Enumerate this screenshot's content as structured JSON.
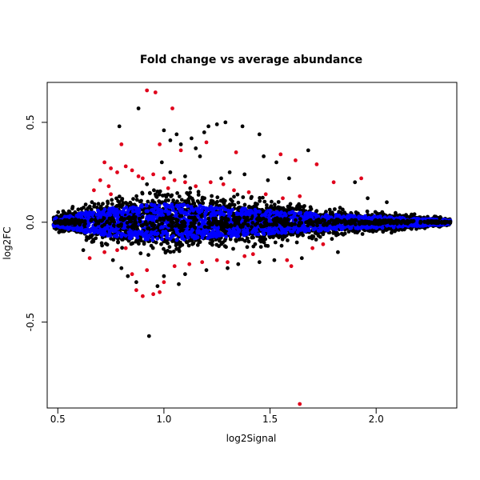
{
  "chart_data": {
    "type": "scatter",
    "title": "Fold change vs average abundance",
    "xlabel": "log2Signal",
    "ylabel": "log2FC",
    "xlim": [
      0.45,
      2.38
    ],
    "ylim": [
      -0.93,
      0.7
    ],
    "x_ticks": [
      0.5,
      1.0,
      1.5,
      2.0
    ],
    "x_tick_labels": [
      "0.5",
      "1.0",
      "1.5",
      "2.0"
    ],
    "y_ticks": [
      -0.5,
      0.0,
      0.5
    ],
    "y_tick_labels": [
      "-0.5",
      "0.0",
      "0.5"
    ],
    "grid": false,
    "legend": "none",
    "colors": {
      "black": "#000000",
      "blue": "#0000ff",
      "red": "#e0001b"
    },
    "band_envelope": {
      "x": [
        0.48,
        0.55,
        0.65,
        0.75,
        0.85,
        0.95,
        1.05,
        1.15,
        1.25,
        1.35,
        1.45,
        1.55,
        1.65,
        1.75,
        1.85,
        1.95,
        2.05,
        2.15,
        2.25,
        2.35
      ],
      "half_width": [
        0.03,
        0.05,
        0.08,
        0.1,
        0.12,
        0.13,
        0.13,
        0.12,
        0.11,
        0.1,
        0.09,
        0.08,
        0.07,
        0.06,
        0.05,
        0.045,
        0.04,
        0.03,
        0.025,
        0.015
      ]
    },
    "series": [
      {
        "color": "black",
        "points": [
          [
            0.88,
            0.57
          ],
          [
            0.79,
            0.48
          ],
          [
            1.0,
            0.46
          ],
          [
            1.06,
            0.44
          ],
          [
            1.13,
            0.42
          ],
          [
            1.19,
            0.45
          ],
          [
            1.21,
            0.48
          ],
          [
            1.25,
            0.49
          ],
          [
            1.29,
            0.5
          ],
          [
            1.37,
            0.48
          ],
          [
            1.45,
            0.44
          ],
          [
            1.03,
            0.41
          ],
          [
            1.08,
            0.39
          ],
          [
            1.15,
            0.37
          ],
          [
            1.47,
            0.33
          ],
          [
            1.53,
            0.3
          ],
          [
            1.68,
            0.36
          ],
          [
            1.17,
            0.33
          ],
          [
            0.99,
            0.3
          ],
          [
            1.49,
            0.21
          ],
          [
            1.03,
            0.25
          ],
          [
            1.38,
            0.24
          ],
          [
            1.59,
            0.22
          ],
          [
            1.9,
            0.2
          ],
          [
            1.27,
            0.22
          ],
          [
            1.31,
            0.25
          ],
          [
            0.92,
            0.19
          ],
          [
            1.1,
            0.23
          ],
          [
            0.93,
            -0.57
          ],
          [
            0.83,
            -0.27
          ],
          [
            0.87,
            -0.3
          ],
          [
            0.97,
            -0.32
          ],
          [
            1.07,
            -0.31
          ],
          [
            1.0,
            -0.27
          ],
          [
            1.2,
            -0.24
          ],
          [
            1.3,
            -0.23
          ],
          [
            1.35,
            -0.21
          ],
          [
            1.45,
            -0.2
          ],
          [
            0.76,
            -0.19
          ],
          [
            1.52,
            -0.19
          ],
          [
            1.65,
            -0.18
          ],
          [
            0.62,
            -0.14
          ],
          [
            1.1,
            -0.26
          ],
          [
            0.8,
            -0.23
          ],
          [
            1.82,
            -0.15
          ],
          [
            1.96,
            0.12
          ],
          [
            2.05,
            0.1
          ],
          [
            2.3,
            0.02
          ]
        ]
      },
      {
        "color": "red",
        "points": [
          [
            0.92,
            0.66
          ],
          [
            0.96,
            0.65
          ],
          [
            1.04,
            0.57
          ],
          [
            1.64,
            -0.91
          ],
          [
            0.8,
            0.39
          ],
          [
            0.98,
            0.39
          ],
          [
            1.2,
            0.4
          ],
          [
            1.08,
            0.36
          ],
          [
            1.34,
            0.35
          ],
          [
            1.55,
            0.34
          ],
          [
            1.62,
            0.31
          ],
          [
            1.72,
            0.29
          ],
          [
            1.93,
            0.22
          ],
          [
            1.8,
            0.2
          ],
          [
            0.72,
            0.3
          ],
          [
            0.75,
            0.27
          ],
          [
            0.78,
            0.25
          ],
          [
            0.82,
            0.28
          ],
          [
            0.85,
            0.26
          ],
          [
            0.88,
            0.23
          ],
          [
            0.9,
            0.22
          ],
          [
            0.95,
            0.24
          ],
          [
            1.0,
            0.22
          ],
          [
            1.05,
            0.21
          ],
          [
            1.1,
            0.2
          ],
          [
            1.15,
            0.18
          ],
          [
            1.22,
            0.2
          ],
          [
            1.28,
            0.19
          ],
          [
            1.33,
            0.16
          ],
          [
            1.4,
            0.15
          ],
          [
            0.7,
            0.21
          ],
          [
            0.74,
            0.18
          ],
          [
            0.67,
            0.16
          ],
          [
            1.48,
            0.14
          ],
          [
            1.56,
            0.12
          ],
          [
            1.64,
            0.13
          ],
          [
            0.87,
            -0.34
          ],
          [
            0.9,
            -0.37
          ],
          [
            0.95,
            -0.36
          ],
          [
            0.98,
            -0.35
          ],
          [
            1.0,
            -0.3
          ],
          [
            0.85,
            -0.26
          ],
          [
            0.92,
            -0.24
          ],
          [
            1.05,
            -0.22
          ],
          [
            1.12,
            -0.21
          ],
          [
            1.18,
            -0.2
          ],
          [
            1.25,
            -0.19
          ],
          [
            1.3,
            -0.2
          ],
          [
            1.38,
            -0.17
          ],
          [
            1.42,
            -0.16
          ],
          [
            1.58,
            -0.19
          ],
          [
            1.6,
            -0.22
          ],
          [
            0.65,
            -0.18
          ],
          [
            0.72,
            -0.15
          ],
          [
            0.78,
            -0.14
          ],
          [
            0.82,
            -0.13
          ],
          [
            1.7,
            -0.13
          ],
          [
            1.75,
            -0.11
          ],
          [
            0.75,
            0.14
          ],
          [
            1.02,
            0.17
          ]
        ]
      }
    ]
  }
}
